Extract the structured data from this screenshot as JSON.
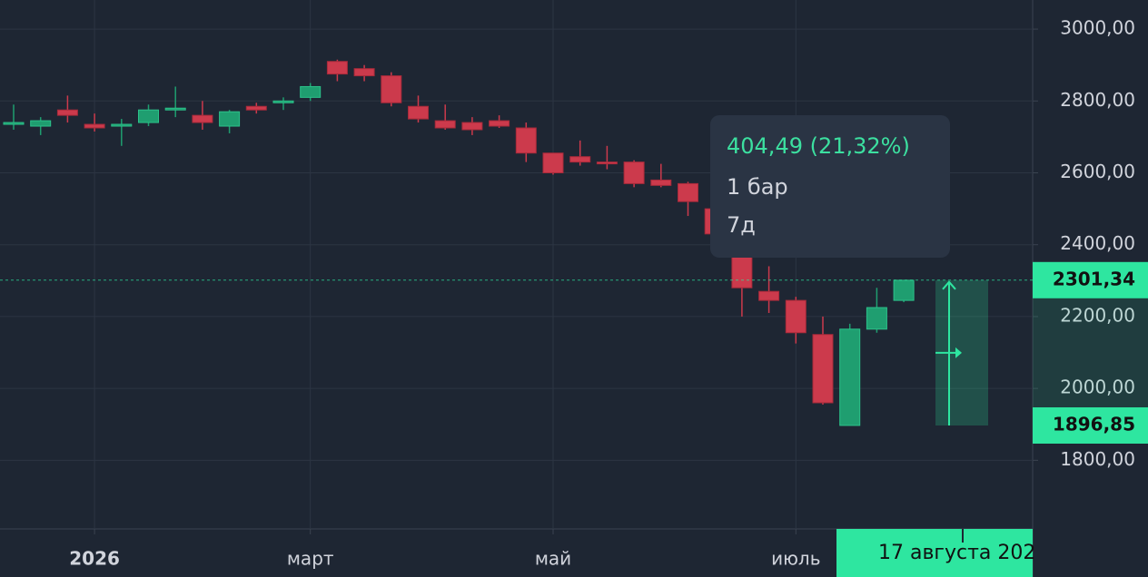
{
  "chart_data": {
    "type": "candlestick",
    "categories": [
      null,
      null,
      null,
      "2026",
      null,
      null,
      null,
      null,
      null,
      null,
      null,
      "март",
      null,
      null,
      null,
      null,
      null,
      null,
      null,
      null,
      "май",
      null,
      null,
      null,
      null,
      null,
      null,
      null,
      null,
      "июль",
      null,
      null,
      null,
      null
    ],
    "open": [
      2735,
      2730,
      2775,
      2735,
      2730,
      2740,
      2775,
      2760,
      2730,
      2785,
      2795,
      2810,
      2910,
      2890,
      2870,
      2785,
      2745,
      2740,
      2745,
      2725,
      2655,
      2645,
      2630,
      2630,
      2580,
      2570,
      2500,
      2370,
      2270,
      2245,
      2150,
      1897,
      2165,
      2245
    ],
    "high": [
      2790,
      2755,
      2815,
      2765,
      2750,
      2790,
      2840,
      2800,
      2775,
      2795,
      2810,
      2850,
      2915,
      2900,
      2880,
      2815,
      2790,
      2755,
      2760,
      2740,
      2655,
      2690,
      2675,
      2635,
      2625,
      2575,
      2520,
      2380,
      2340,
      2255,
      2200,
      2180,
      2280,
      2301
    ],
    "low": [
      2720,
      2705,
      2740,
      2715,
      2675,
      2730,
      2755,
      2720,
      2710,
      2765,
      2775,
      2800,
      2855,
      2855,
      2785,
      2740,
      2720,
      2705,
      2725,
      2630,
      2595,
      2620,
      2610,
      2560,
      2560,
      2480,
      2410,
      2200,
      2210,
      2125,
      1955,
      1897,
      2155,
      2240
    ],
    "close": [
      2740,
      2745,
      2760,
      2725,
      2735,
      2775,
      2780,
      2740,
      2770,
      2775,
      2800,
      2840,
      2875,
      2870,
      2795,
      2750,
      2725,
      2720,
      2730,
      2655,
      2600,
      2630,
      2625,
      2570,
      2565,
      2520,
      2430,
      2280,
      2245,
      2155,
      1960,
      2165,
      2225,
      2301
    ],
    "up_color": "#1f9e70",
    "down_color": "#cc3a4c",
    "ylim": [
      1609,
      3081
    ],
    "yticks": [
      {
        "value": 1800,
        "label": "1800,00"
      },
      {
        "value": 2000,
        "label": "2000,00"
      },
      {
        "value": 2200,
        "label": "2200,00"
      },
      {
        "value": 2400,
        "label": "2400,00"
      },
      {
        "value": 2600,
        "label": "2600,00"
      },
      {
        "value": 2800,
        "label": "2800,00"
      },
      {
        "value": 3000,
        "label": "3000,00"
      }
    ],
    "grid": true,
    "measure": {
      "from": {
        "value": 1896.85,
        "label": "1896,85"
      },
      "to": {
        "value": 2301.34,
        "label": "2301,34"
      },
      "color": "#2ee6a0"
    },
    "tooltip": {
      "change": "404,49 (21,32%)",
      "bars": "1 бар",
      "period": "7д"
    },
    "crosshair_x_label": "17 августа 202"
  }
}
